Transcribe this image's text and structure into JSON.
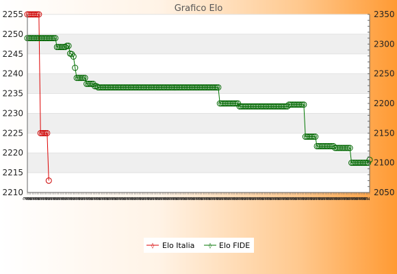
{
  "chart_data": {
    "type": "line",
    "title": "Grafico Elo",
    "y_left": {
      "min": 2210,
      "max": 2255,
      "step": 5
    },
    "y_right": {
      "min": 2050,
      "max": 2350,
      "step": 50
    },
    "x_tick_label": "2",
    "grid": true,
    "legend_position": "bottom-center",
    "series": [
      {
        "name": "Elo Italia",
        "axis": "left",
        "color": "#dd0000",
        "marker_color": "#cc0000",
        "values": [
          2255,
          2255,
          2255,
          2255,
          2255,
          2255,
          2255,
          2255,
          2225,
          2225,
          2225,
          2225,
          2225,
          2213
        ]
      },
      {
        "name": "Elo FIDE",
        "axis": "right",
        "color": "#007700",
        "marker_color": "#006600",
        "values": [
          2310,
          2310,
          2310,
          2310,
          2310,
          2310,
          2310,
          2310,
          2310,
          2310,
          2310,
          2310,
          2310,
          2310,
          2310,
          2310,
          2310,
          2310,
          2295,
          2295,
          2295,
          2295,
          2295,
          2295,
          2297,
          2297,
          2284,
          2283,
          2279,
          2260,
          2243,
          2243,
          2243,
          2243,
          2243,
          2243,
          2233,
          2233,
          2233,
          2233,
          2233,
          2229,
          2229,
          2227,
          2227,
          2227,
          2227,
          2227,
          2227,
          2227,
          2227,
          2227,
          2227,
          2227,
          2227,
          2227,
          2227,
          2227,
          2227,
          2227,
          2227,
          2227,
          2227,
          2227,
          2227,
          2227,
          2227,
          2227,
          2227,
          2227,
          2227,
          2227,
          2227,
          2227,
          2227,
          2227,
          2227,
          2227,
          2227,
          2227,
          2227,
          2227,
          2227,
          2227,
          2227,
          2227,
          2227,
          2227,
          2227,
          2227,
          2227,
          2227,
          2227,
          2227,
          2227,
          2227,
          2227,
          2227,
          2227,
          2227,
          2227,
          2227,
          2227,
          2227,
          2227,
          2227,
          2227,
          2227,
          2227,
          2227,
          2227,
          2227,
          2227,
          2227,
          2227,
          2227,
          2227,
          2200,
          2200,
          2200,
          2200,
          2200,
          2200,
          2200,
          2200,
          2200,
          2200,
          2200,
          2200,
          2195,
          2195,
          2195,
          2195,
          2195,
          2195,
          2195,
          2195,
          2195,
          2195,
          2195,
          2195,
          2195,
          2195,
          2195,
          2195,
          2195,
          2195,
          2195,
          2195,
          2195,
          2195,
          2195,
          2195,
          2195,
          2195,
          2195,
          2195,
          2195,
          2195,
          2198,
          2198,
          2198,
          2198,
          2198,
          2198,
          2198,
          2198,
          2198,
          2198,
          2144,
          2144,
          2144,
          2144,
          2144,
          2144,
          2144,
          2128,
          2128,
          2128,
          2128,
          2128,
          2128,
          2128,
          2128,
          2128,
          2128,
          2128,
          2125,
          2125,
          2125,
          2125,
          2125,
          2125,
          2125,
          2125,
          2125,
          2125,
          2100,
          2100,
          2100,
          2100,
          2100,
          2100,
          2100,
          2100,
          2100,
          2100,
          2100,
          2105
        ]
      }
    ]
  }
}
